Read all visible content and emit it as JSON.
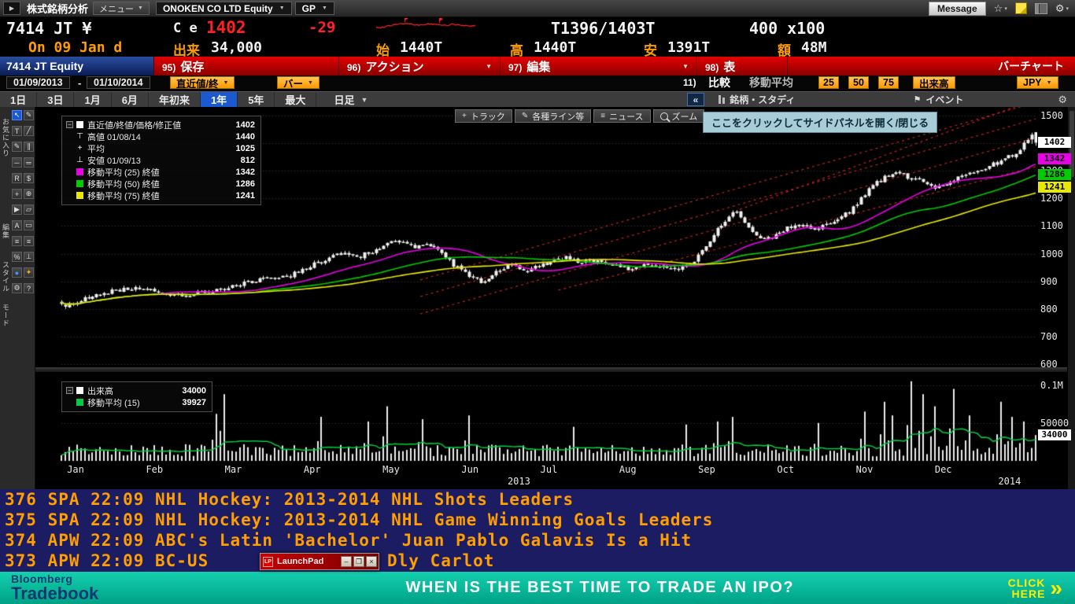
{
  "titlebar": {
    "panel_icon": "▶",
    "app_title": "株式銘柄分析",
    "menu_label": "メニュー",
    "security": "ONOKEN CO LTD Equity",
    "function": "GP",
    "message": "Message"
  },
  "quote": {
    "ticker": "7414 JT ¥",
    "field_label": "C e",
    "last": "1402",
    "change": "-29",
    "bid_ask": "T1396/1403T",
    "lot": "400 x100",
    "session": "On 09 Jan d",
    "volume_label": "出来",
    "volume": "34,000",
    "open_label": "始",
    "open": "1440T",
    "high_label": "高",
    "high": "1440T",
    "low_label": "安",
    "low": "1391T",
    "value_label": "額",
    "value": "48M"
  },
  "menubar": {
    "security": "7414 JT Equity",
    "items": [
      {
        "key": "95)",
        "label": "保存"
      },
      {
        "key": "96)",
        "label": "アクション"
      },
      {
        "key": "97)",
        "label": "編集"
      },
      {
        "key": "98)",
        "label": "表"
      }
    ],
    "right_label": "バーチャート"
  },
  "settings": {
    "date_from": "01/09/2013",
    "date_to": "01/10/2014",
    "price_field": "直近値/終",
    "chart_style": "バー",
    "compare_key": "11)",
    "compare_label": "比較",
    "ma_label": "移動平均",
    "ma_periods": [
      "25",
      "50",
      "75"
    ],
    "volume_toggle": "出来高",
    "currency": "JPY"
  },
  "tabs": {
    "items": [
      "1日",
      "3日",
      "1月",
      "6月",
      "年初来",
      "1年",
      "5年",
      "最大"
    ],
    "active_index": 5,
    "frequency": "日足",
    "collapse": "«",
    "study_label": "銘柄・スタディ",
    "event_label": "イベント"
  },
  "side_labels": [
    "お気に入り",
    "編集",
    "スタイル",
    "モード"
  ],
  "tools": [
    {
      "name": "cursor-tool",
      "glyph": "↖",
      "active": true
    },
    {
      "name": "pencil-tool",
      "glyph": "✎"
    },
    {
      "name": "text-annotation-tool",
      "glyph": "T"
    },
    {
      "name": "trendline-tool",
      "glyph": "╱"
    },
    {
      "name": "draw-tool",
      "glyph": "✎"
    },
    {
      "name": "channel-tool",
      "glyph": "∥"
    },
    {
      "name": "horizontal-line-tool",
      "glyph": "─"
    },
    {
      "name": "double-line-tool",
      "glyph": "═"
    },
    {
      "name": "regression-tool",
      "glyph": "R"
    },
    {
      "name": "fibonacci-tool",
      "glyph": "$"
    },
    {
      "name": "crosshair-tool",
      "glyph": "+"
    },
    {
      "name": "move-tool",
      "glyph": "⊕"
    },
    {
      "name": "pointer-tool",
      "glyph": "▶"
    },
    {
      "name": "eraser-tool",
      "glyph": "▱"
    },
    {
      "name": "text-style-tool",
      "glyph": "A"
    },
    {
      "name": "rectangle-tool",
      "glyph": "▭"
    },
    {
      "name": "style-list-tool",
      "glyph": "≡"
    },
    {
      "name": "style-menu-tool",
      "glyph": "≡"
    },
    {
      "name": "measure-tool",
      "glyph": "%"
    },
    {
      "name": "anchor-tool",
      "glyph": "⊥"
    },
    {
      "name": "mode-g-tool",
      "glyph": "●",
      "color": "#3d9bff"
    },
    {
      "name": "palette-tool",
      "glyph": "✦",
      "color": "#ffaa22"
    },
    {
      "name": "toolbar-settings-tool",
      "glyph": "⚙"
    },
    {
      "name": "help-tool",
      "glyph": "?"
    }
  ],
  "chart_toolbar": {
    "track": "トラック",
    "lines": "各種ライン等",
    "news": "ニュース",
    "zoom": "ズーム"
  },
  "side_tooltip": "ここをクリックしてサイドパネルを開く/閉じる",
  "legend": {
    "rows": [
      {
        "label": "直近値/終値/価格/修正値",
        "value": "1402",
        "chip": "#ffffff"
      },
      {
        "label": "高値 01/08/14",
        "value": "1440",
        "glyph": "⊤"
      },
      {
        "label": "平均",
        "value": "1025",
        "glyph": "+"
      },
      {
        "label": "安値 01/09/13",
        "value": "812",
        "glyph": "⊥"
      },
      {
        "label": "移動平均 (25) 終値",
        "value": "1342",
        "chip": "#e800e8"
      },
      {
        "label": "移動平均 (50) 終値",
        "value": "1286",
        "chip": "#00cc00"
      },
      {
        "label": "移動平均 (75) 終値",
        "value": "1241",
        "chip": "#e8e800"
      }
    ]
  },
  "volume_legend": {
    "rows": [
      {
        "label": "出来高",
        "value": "34000",
        "chip": "#ffffff"
      },
      {
        "label": "移動平均 (15)",
        "value": "39927",
        "chip": "#00cc44"
      }
    ]
  },
  "chart_data": {
    "type": "candlestick",
    "security": "7414 JT Equity",
    "range": "01/09/2013 - 01/10/2014",
    "frequency": "日足",
    "grid": true,
    "legend_position": "top-left",
    "bars": 252,
    "seed": 7414,
    "x_range_months": [
      0,
      12.35
    ],
    "x_month_labels": [
      "Jan",
      "Feb",
      "Mar",
      "Apr",
      "May",
      "Jun",
      "Jul",
      "Aug",
      "Sep",
      "Oct",
      "Nov",
      "Dec"
    ],
    "year_left": "2013",
    "year_right": "2014",
    "price_axis": {
      "min": 600,
      "max": 1500,
      "ticks": [
        1500,
        1400,
        1300,
        1200,
        1100,
        1000,
        900,
        800,
        700,
        600
      ]
    },
    "stats": {
      "last": 1402,
      "change": -29,
      "high": {
        "date": "01/08/14",
        "value": 1440
      },
      "average": 1025,
      "low": {
        "date": "01/09/13",
        "value": 812
      }
    },
    "moving_averages": [
      {
        "period": 25,
        "last": 1342,
        "color": "#e800e8"
      },
      {
        "period": 50,
        "last": 1286,
        "color": "#00cc00"
      },
      {
        "period": 75,
        "last": 1241,
        "color": "#e8e800"
      }
    ],
    "price_tags": [
      {
        "value": "1402",
        "price": 1402,
        "bg": "#ffffff"
      },
      {
        "value": "1342",
        "price": 1342,
        "bg": "#e800e8"
      },
      {
        "value": "1286",
        "price": 1286,
        "bg": "#00cc00"
      },
      {
        "value": "1241",
        "price": 1241,
        "bg": "#e8e800"
      }
    ],
    "price_anchors": [
      [
        0,
        812
      ],
      [
        0.2,
        826
      ],
      [
        0.5,
        858
      ],
      [
        0.8,
        872
      ],
      [
        1,
        878
      ],
      [
        1.2,
        860
      ],
      [
        1.5,
        848
      ],
      [
        1.8,
        862
      ],
      [
        2,
        872
      ],
      [
        2.3,
        893
      ],
      [
        2.6,
        908
      ],
      [
        2.9,
        922
      ],
      [
        3.1,
        948
      ],
      [
        3.4,
        988
      ],
      [
        3.6,
        1002
      ],
      [
        3.8,
        992
      ],
      [
        4,
        1018
      ],
      [
        4.2,
        1042
      ],
      [
        4.35,
        1048
      ],
      [
        4.5,
        1022
      ],
      [
        4.65,
        1038
      ],
      [
        4.8,
        1005
      ],
      [
        5,
        952
      ],
      [
        5.2,
        908
      ],
      [
        5.35,
        898
      ],
      [
        5.5,
        932
      ],
      [
        5.7,
        958
      ],
      [
        5.85,
        938
      ],
      [
        6,
        948
      ],
      [
        6.2,
        972
      ],
      [
        6.4,
        984
      ],
      [
        6.6,
        968
      ],
      [
        6.8,
        978
      ],
      [
        7,
        958
      ],
      [
        7.2,
        942
      ],
      [
        7.4,
        962
      ],
      [
        7.6,
        952
      ],
      [
        7.8,
        938
      ],
      [
        8,
        965
      ],
      [
        8.15,
        1020
      ],
      [
        8.3,
        1082
      ],
      [
        8.45,
        1135
      ],
      [
        8.55,
        1152
      ],
      [
        8.7,
        1095
      ],
      [
        8.85,
        1060
      ],
      [
        9,
        1052
      ],
      [
        9.2,
        1092
      ],
      [
        9.4,
        1112
      ],
      [
        9.55,
        1082
      ],
      [
        9.7,
        1105
      ],
      [
        9.85,
        1128
      ],
      [
        10,
        1152
      ],
      [
        10.15,
        1205
      ],
      [
        10.3,
        1248
      ],
      [
        10.45,
        1282
      ],
      [
        10.6,
        1305
      ],
      [
        10.75,
        1258
      ],
      [
        10.9,
        1272
      ],
      [
        11.05,
        1238
      ],
      [
        11.2,
        1252
      ],
      [
        11.35,
        1270
      ],
      [
        11.5,
        1292
      ],
      [
        11.65,
        1308
      ],
      [
        11.8,
        1322
      ],
      [
        11.95,
        1338
      ],
      [
        12.1,
        1368
      ],
      [
        12.25,
        1408
      ],
      [
        12.35,
        1402
      ]
    ],
    "trend_lines": [
      {
        "from": [
          4.55,
          905
        ],
        "to": [
          12.35,
          1548
        ]
      },
      {
        "from": [
          4.55,
          845
        ],
        "to": [
          12.35,
          1488
        ]
      },
      {
        "from": [
          4.55,
          782
        ],
        "to": [
          12.35,
          1420
        ]
      },
      {
        "from": [
          6.3,
          868
        ],
        "to": [
          12.35,
          1315
        ]
      },
      {
        "from": [
          8.6,
          1160
        ],
        "to": [
          12.35,
          1560
        ]
      }
    ],
    "volume": {
      "last": 34000,
      "ma_period": 15,
      "ma_last": 39927,
      "max": 110000,
      "top_label": "0.1M",
      "top_value": 100000,
      "grid_label": "50000",
      "grid_value": 50000,
      "tag": {
        "value": "34000",
        "level": 34000,
        "bg": "#ffffff"
      },
      "spikes": [
        [
          1.95,
          62000
        ],
        [
          2.05,
          88000
        ],
        [
          3.3,
          58000
        ],
        [
          3.9,
          52000
        ],
        [
          4.15,
          72000
        ],
        [
          4.6,
          55000
        ],
        [
          5.15,
          60000
        ],
        [
          6.5,
          45000
        ],
        [
          7.9,
          48000
        ],
        [
          8.3,
          52000
        ],
        [
          8.5,
          58000
        ],
        [
          9.6,
          50000
        ],
        [
          10.2,
          65000
        ],
        [
          10.45,
          78000
        ],
        [
          10.55,
          60000
        ],
        [
          10.8,
          105000
        ],
        [
          10.9,
          88000
        ],
        [
          11.05,
          72000
        ],
        [
          11.3,
          95000
        ],
        [
          11.5,
          60000
        ],
        [
          11.9,
          78000
        ],
        [
          12.05,
          58000
        ],
        [
          12.2,
          52000
        ]
      ]
    }
  },
  "news": {
    "lines": [
      {
        "text": "376 SPA 22:09 NHL Hockey: 2013-2014 NHL Shots Leaders"
      },
      {
        "text": "375 SPA 22:09 NHL Hockey: 2013-2014 NHL Game Winning Goals Leaders"
      },
      {
        "text": "374 APW 22:09 ABC's Latin 'Bachelor' Juan Pablo Galavis Is a Hit"
      },
      {
        "text": "373 APW 22:09 BC-US",
        "suffix": "Dly Carlot"
      }
    ]
  },
  "launchpad": {
    "logo": "LP",
    "title": "LaunchPad",
    "buttons": [
      {
        "name": "minimize",
        "glyph": "–"
      },
      {
        "name": "restore",
        "glyph": "❐"
      },
      {
        "name": "close",
        "glyph": "×"
      }
    ]
  },
  "banner": {
    "brand_top": "Bloomberg",
    "brand_bottom": "Tradebook",
    "message": "WHEN IS THE BEST TIME TO TRADE AN IPO?",
    "cta_top": "CLICK",
    "cta_bottom": "HERE",
    "arrow": "»"
  }
}
